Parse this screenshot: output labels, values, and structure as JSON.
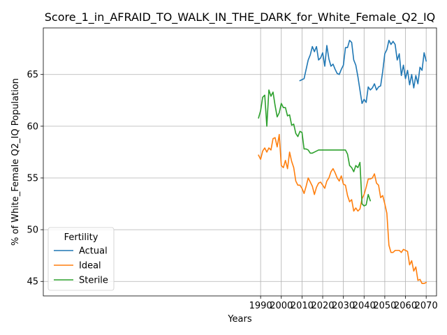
{
  "chart_data": {
    "type": "line",
    "title": "Score_1_in_AFRAID_TO_WALK_IN_THE_DARK_for_White_Female_Q2_IQ",
    "xlabel": "Years",
    "ylabel": "% of White_Female Q2_IQ Population",
    "xlim": [
      1885,
      2075
    ],
    "ylim": [
      43.6,
      69.5
    ],
    "xticks": [
      1990,
      2000,
      2010,
      2020,
      2030,
      2040,
      2050,
      2060,
      2070
    ],
    "yticks": [
      45,
      50,
      55,
      60,
      65
    ],
    "grid": true,
    "legend": {
      "title": "Fertility",
      "placement": "lower-left"
    },
    "series": [
      {
        "name": "Actual",
        "color": "#1f77b4",
        "x": [
          2009,
          2010,
          2011,
          2012,
          2013,
          2014,
          2015,
          2016,
          2017,
          2018,
          2019,
          2020,
          2021,
          2022,
          2023,
          2024,
          2025,
          2026,
          2027,
          2028,
          2029,
          2030,
          2031,
          2032,
          2033,
          2034,
          2035,
          2036,
          2037,
          2038,
          2039,
          2040,
          2041,
          2042,
          2043,
          2044,
          2045,
          2046,
          2047,
          2048,
          2049,
          2050,
          2051,
          2052,
          2053,
          2054,
          2055,
          2056,
          2057,
          2058,
          2059,
          2060,
          2061,
          2062,
          2063,
          2064,
          2065,
          2066,
          2067,
          2068,
          2069,
          2070
        ],
        "values": [
          64.4,
          64.5,
          64.6,
          65.5,
          66.4,
          66.9,
          67.7,
          67.2,
          67.7,
          66.4,
          66.6,
          67.1,
          65.8,
          67.8,
          66.5,
          65.8,
          66.0,
          65.5,
          65.1,
          65.0,
          65.5,
          65.9,
          67.6,
          67.6,
          68.3,
          68.1,
          66.4,
          65.9,
          64.8,
          63.5,
          62.2,
          62.6,
          62.3,
          63.8,
          63.5,
          63.7,
          64.1,
          63.5,
          63.8,
          63.9,
          65.3,
          67.0,
          67.4,
          68.3,
          67.9,
          68.2,
          67.9,
          66.4,
          67.0,
          64.9,
          65.9,
          64.6,
          65.4,
          64.0,
          65.0,
          63.7,
          64.9,
          64.1,
          65.7,
          65.4,
          67.1,
          66.3
        ]
      },
      {
        "name": "Ideal",
        "color": "#ff7f0e",
        "x": [
          1989,
          1990,
          1991,
          1992,
          1993,
          1994,
          1995,
          1996,
          1997,
          1998,
          1999,
          2000,
          2001,
          2002,
          2003,
          2004,
          2005,
          2006,
          2007,
          2008,
          2009,
          2010,
          2011,
          2012,
          2013,
          2014,
          2015,
          2016,
          2017,
          2018,
          2019,
          2020,
          2021,
          2022,
          2023,
          2024,
          2025,
          2026,
          2027,
          2028,
          2029,
          2030,
          2031,
          2032,
          2033,
          2034,
          2035,
          2036,
          2037,
          2038,
          2039,
          2040,
          2041,
          2042,
          2043,
          2044,
          2045,
          2046,
          2047,
          2048,
          2049,
          2050,
          2051,
          2052,
          2053,
          2054,
          2055,
          2056,
          2057,
          2058,
          2059,
          2060,
          2061,
          2062,
          2063,
          2064,
          2065,
          2066,
          2067,
          2068,
          2069,
          2070
        ],
        "values": [
          57.2,
          56.8,
          57.6,
          57.9,
          57.5,
          57.9,
          57.7,
          58.8,
          58.9,
          58.0,
          59.2,
          56.2,
          56.0,
          56.7,
          55.9,
          57.5,
          56.6,
          56.0,
          54.7,
          54.3,
          54.3,
          54.0,
          53.5,
          54.2,
          55.0,
          54.6,
          54.2,
          53.4,
          54.1,
          54.5,
          54.6,
          54.3,
          54.0,
          54.7,
          55.0,
          55.6,
          55.9,
          55.5,
          55.0,
          54.7,
          55.2,
          54.4,
          54.3,
          53.3,
          52.7,
          52.9,
          51.8,
          52.1,
          51.8,
          52.0,
          53.0,
          53.4,
          54.1,
          54.9,
          54.9,
          55.0,
          55.4,
          54.5,
          54.3,
          53.1,
          53.3,
          52.5,
          51.6,
          48.5,
          47.8,
          47.8,
          48.0,
          48.0,
          48.0,
          47.8,
          48.1,
          48.0,
          47.9,
          46.6,
          47.0,
          46.0,
          46.4,
          45.1,
          45.2,
          44.8,
          44.8,
          44.9
        ]
      },
      {
        "name": "Sterile",
        "color": "#2ca02c",
        "x": [
          1989,
          1990,
          1991,
          1992,
          1993,
          1994,
          1995,
          1996,
          1997,
          1998,
          1999,
          2000,
          2001,
          2002,
          2003,
          2004,
          2005,
          2006,
          2007,
          2008,
          2009,
          2010,
          2011,
          2012,
          2013,
          2014,
          2015,
          2016,
          2017,
          2018,
          2019,
          2020,
          2021,
          2022,
          2023,
          2024,
          2025,
          2026,
          2027,
          2028,
          2029,
          2030,
          2031,
          2032,
          2033,
          2034,
          2035,
          2036,
          2037,
          2038,
          2039,
          2040,
          2041,
          2042,
          2043
        ],
        "values": [
          60.8,
          61.5,
          62.8,
          63.0,
          60.0,
          63.5,
          62.9,
          63.3,
          62.0,
          60.9,
          61.3,
          62.2,
          61.8,
          61.8,
          61.0,
          61.1,
          60.1,
          60.2,
          59.3,
          59.0,
          59.5,
          59.4,
          57.8,
          57.8,
          57.7,
          57.4,
          57.4,
          57.5,
          57.6,
          57.7,
          57.7,
          57.7,
          57.7,
          57.7,
          57.7,
          57.7,
          57.7,
          57.7,
          57.7,
          57.7,
          57.7,
          57.7,
          57.7,
          57.3,
          56.2,
          56.0,
          55.6,
          56.2,
          56.0,
          56.5,
          52.5,
          52.3,
          52.4,
          53.4,
          52.8
        ]
      }
    ]
  }
}
